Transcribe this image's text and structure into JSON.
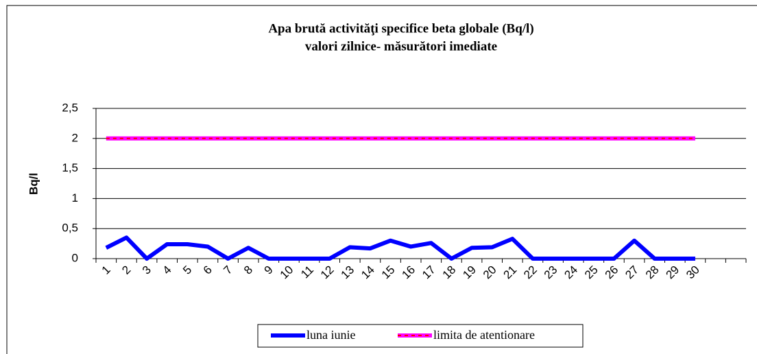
{
  "chart_data": {
    "type": "line",
    "title": [
      "Apa brută activităţi specifice beta globale (Bq/l)",
      "valori zilnice- măsurători imediate"
    ],
    "y_label": "Bq/l",
    "categories": [
      "1",
      "2",
      "3",
      "4",
      "5",
      "6",
      "7",
      "8",
      "9",
      "10",
      "11",
      "12",
      "13",
      "14",
      "15",
      "16",
      "17",
      "18",
      "19",
      "20",
      "21",
      "22",
      "23",
      "24",
      "25",
      "26",
      "27",
      "28",
      "29",
      "30",
      null,
      null
    ],
    "series": [
      {
        "name": "luna iunie",
        "color": "#0000ff",
        "values": [
          0.18,
          0.35,
          0,
          0.24,
          0.24,
          0.2,
          0,
          0.18,
          0,
          0,
          0,
          0,
          0.19,
          0.17,
          0.3,
          0.2,
          0.26,
          0,
          0.18,
          0.19,
          0.33,
          0,
          0,
          0,
          0,
          0,
          0.3,
          0,
          0,
          0,
          null,
          null
        ]
      },
      {
        "name": "limita de atentionare",
        "color": "#ff00ff",
        "dash_color": "#ff0000",
        "values": [
          2,
          2,
          2,
          2,
          2,
          2,
          2,
          2,
          2,
          2,
          2,
          2,
          2,
          2,
          2,
          2,
          2,
          2,
          2,
          2,
          2,
          2,
          2,
          2,
          2,
          2,
          2,
          2,
          2,
          2,
          null,
          null
        ]
      }
    ],
    "ylim": [
      0,
      2.5
    ],
    "yticks": [
      0,
      {
        "value": 0.5,
        "label": "0,5"
      },
      1,
      {
        "value": 1.5,
        "label": "1,5"
      },
      2,
      {
        "value": 2.5,
        "label": "2,5"
      }
    ],
    "grid": true,
    "legend": "bottom"
  }
}
